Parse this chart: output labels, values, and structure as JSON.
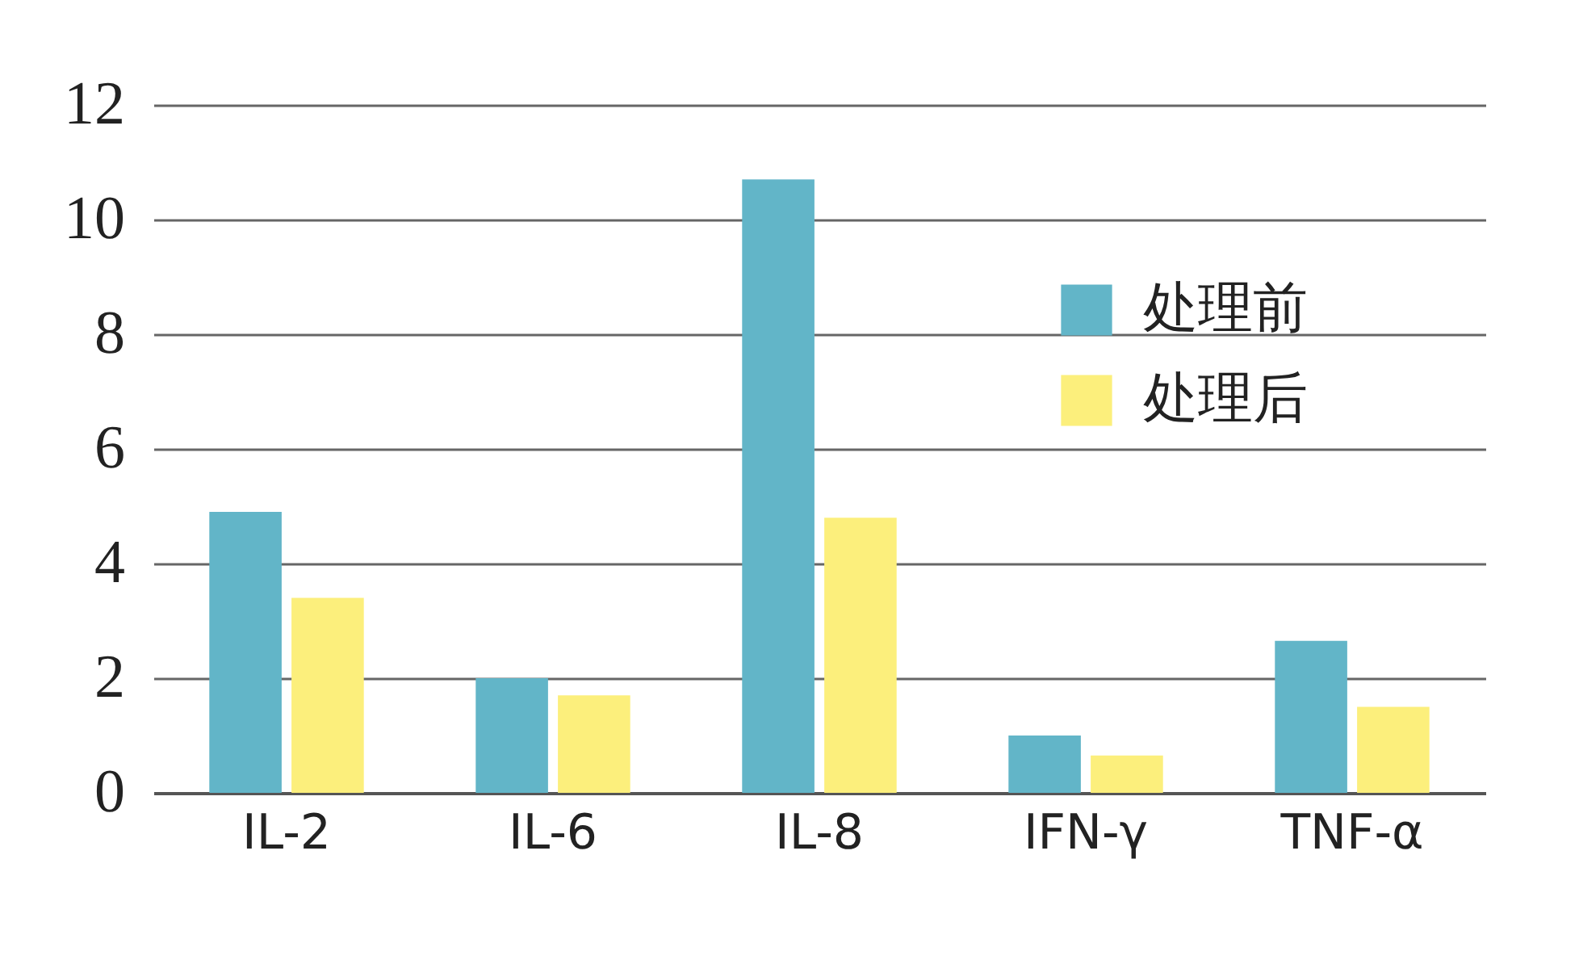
{
  "chart_data": {
    "type": "bar",
    "categories": [
      "IL-2",
      "IL-6",
      "IL-8",
      "IFN-γ",
      "TNF-α"
    ],
    "series": [
      {
        "name": "处理前",
        "color": "#62b5c8",
        "values": [
          4.9,
          2.0,
          10.7,
          1.0,
          2.65
        ]
      },
      {
        "name": "处理后",
        "color": "#fcef7c",
        "values": [
          3.4,
          1.7,
          4.8,
          0.65,
          1.5
        ]
      }
    ],
    "ylim": [
      0,
      12
    ],
    "yticks": [
      0,
      2,
      4,
      6,
      8,
      10,
      12
    ],
    "grid": "y",
    "legend": "top right"
  }
}
